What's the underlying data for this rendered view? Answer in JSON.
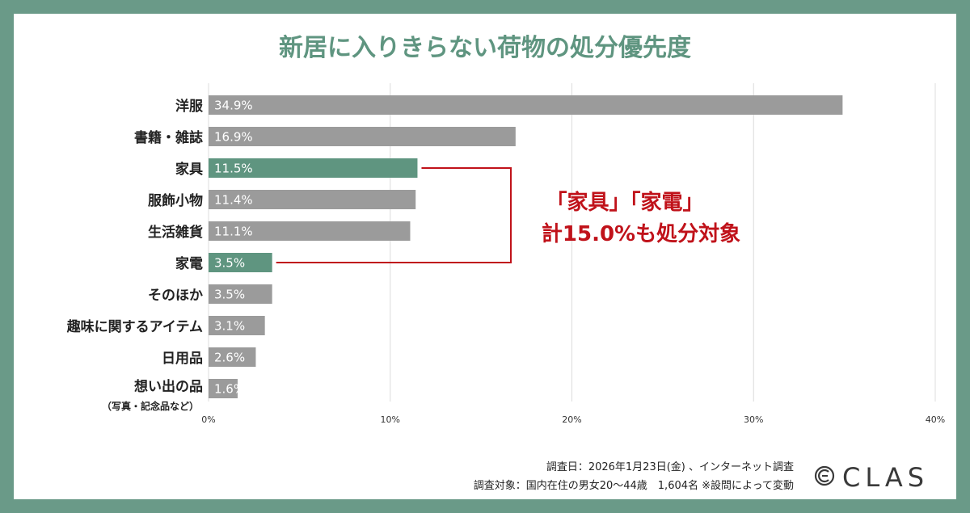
{
  "chart_data": {
    "type": "bar",
    "orientation": "horizontal",
    "title": "新居に入りきらない荷物の処分優先度",
    "categories": [
      "洋服",
      "書籍・雑誌",
      "家具",
      "服飾小物",
      "生活雑貨",
      "家電",
      "そのほか",
      "趣味に関するアイテム",
      "日用品",
      "想い出の品"
    ],
    "category_notes": {
      "想い出の品": "（写真・記念品など）"
    },
    "values": [
      34.9,
      16.9,
      11.5,
      11.4,
      11.1,
      3.5,
      3.5,
      3.1,
      2.6,
      1.6
    ],
    "value_labels": [
      "34.9%",
      "16.9%",
      "11.5%",
      "11.4%",
      "11.1%",
      "3.5%",
      "3.5%",
      "3.1%",
      "2.6%",
      "1.6%"
    ],
    "highlighted": [
      "家具",
      "家電"
    ],
    "xlim": [
      0,
      40
    ],
    "xticks": [
      0,
      10,
      20,
      30,
      40
    ],
    "xtick_labels": [
      "0%",
      "10%",
      "20%",
      "30%",
      "40%"
    ],
    "grid": true,
    "annotation": {
      "line1": "「家具」「家電」",
      "line2": "計15.0%も処分対象",
      "targets": [
        "家具",
        "家電"
      ]
    },
    "colors": {
      "bar": "#9b9b9b",
      "highlight": "#5f9580",
      "title": "#5f9580",
      "annotation": "#c0121a",
      "grid": "#dcdcdc"
    }
  },
  "source": {
    "line1": "調査日：2026年1月23日(金) 、インターネット調査",
    "line2": "調査対象：国内在住の男女20〜44歳　1,604名 ※設問によって変動"
  },
  "brand": {
    "name": "CLAS",
    "icon": "clas-logo-icon"
  }
}
